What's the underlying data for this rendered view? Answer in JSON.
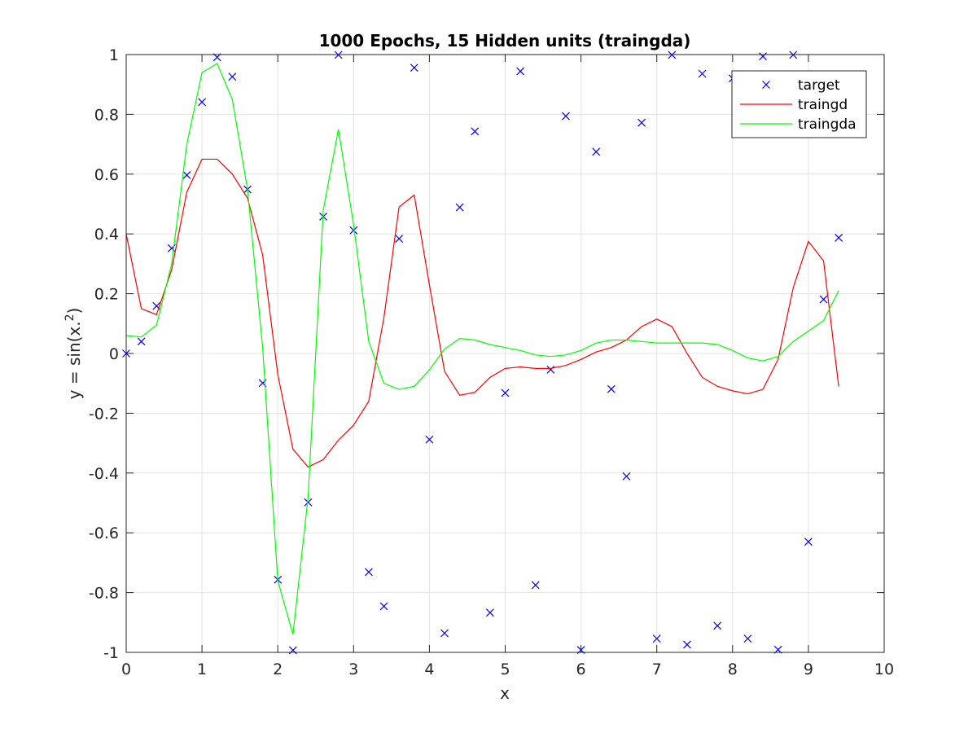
{
  "chart_data": {
    "type": "line",
    "title": "1000 Epochs, 15 Hidden units (traingda)",
    "xlabel": "x",
    "ylabel_main": "y = sin(x.",
    "ylabel_sup": "2",
    "ylabel_end": ")",
    "xlim": [
      0,
      10
    ],
    "ylim": [
      -1,
      1
    ],
    "xticks": [
      0,
      1,
      2,
      3,
      4,
      5,
      6,
      7,
      8,
      9,
      10
    ],
    "yticks": [
      -1,
      -0.8,
      -0.6,
      -0.4,
      -0.2,
      0,
      0.2,
      0.4,
      0.6,
      0.8,
      1
    ],
    "ytick_labels": [
      "-1",
      "-0.8",
      "-0.6",
      "-0.4",
      "-0.2",
      "0",
      "0.2",
      "0.4",
      "0.6",
      "0.8",
      "1"
    ],
    "grid": true,
    "legend_position": "top-right",
    "x": [
      0,
      0.2,
      0.4,
      0.6,
      0.8,
      1.0,
      1.2,
      1.4,
      1.6,
      1.8,
      2.0,
      2.2,
      2.4,
      2.6,
      2.8,
      3.0,
      3.2,
      3.4,
      3.6,
      3.8,
      4.0,
      4.2,
      4.4,
      4.6,
      4.8,
      5.0,
      5.2,
      5.4,
      5.6,
      5.8,
      6.0,
      6.2,
      6.4,
      6.6,
      6.8,
      7.0,
      7.2,
      7.4,
      7.6,
      7.8,
      8.0,
      8.2,
      8.4,
      8.6,
      8.8,
      9.0,
      9.2,
      9.4
    ],
    "series": [
      {
        "name": "target",
        "style": "marker",
        "color": "#0000ff",
        "values": [
          0.0,
          0.04,
          0.159,
          0.352,
          0.597,
          0.841,
          0.991,
          0.926,
          0.549,
          -0.099,
          -0.757,
          -0.993,
          -0.498,
          0.458,
          0.999,
          0.412,
          -0.731,
          -0.846,
          0.384,
          0.956,
          -0.288,
          -0.936,
          0.489,
          0.743,
          -0.867,
          -0.132,
          0.944,
          -0.775,
          -0.054,
          0.794,
          -0.992,
          0.675,
          -0.119,
          -0.411,
          0.772,
          -0.954,
          0.999,
          -0.974,
          0.936,
          -0.911,
          0.92,
          -0.954,
          0.994,
          -0.991,
          0.999,
          -0.63,
          0.181,
          0.387
        ]
      },
      {
        "name": "traingd",
        "style": "line",
        "color": "#ff0000",
        "values": [
          0.4,
          0.15,
          0.13,
          0.28,
          0.54,
          0.65,
          0.65,
          0.6,
          0.52,
          0.33,
          -0.07,
          -0.32,
          -0.38,
          -0.355,
          -0.29,
          -0.24,
          -0.16,
          0.12,
          0.49,
          0.53,
          0.23,
          -0.06,
          -0.14,
          -0.13,
          -0.08,
          -0.05,
          -0.045,
          -0.05,
          -0.05,
          -0.04,
          -0.02,
          0.005,
          0.02,
          0.045,
          0.09,
          0.115,
          0.09,
          0.0,
          -0.08,
          -0.11,
          -0.125,
          -0.135,
          -0.12,
          -0.02,
          0.22,
          0.375,
          0.31,
          -0.11
        ]
      },
      {
        "name": "traingda",
        "style": "line",
        "color": "#00ff00",
        "values": [
          0.06,
          0.055,
          0.095,
          0.3,
          0.7,
          0.94,
          0.97,
          0.85,
          0.55,
          0.02,
          -0.76,
          -0.94,
          -0.48,
          0.48,
          0.75,
          0.43,
          0.04,
          -0.1,
          -0.12,
          -0.11,
          -0.055,
          0.015,
          0.05,
          0.045,
          0.03,
          0.02,
          0.01,
          -0.005,
          -0.01,
          -0.005,
          0.01,
          0.035,
          0.045,
          0.045,
          0.04,
          0.035,
          0.035,
          0.035,
          0.035,
          0.03,
          0.01,
          -0.015,
          -0.025,
          -0.01,
          0.04,
          0.075,
          0.11,
          0.21
        ]
      }
    ]
  }
}
